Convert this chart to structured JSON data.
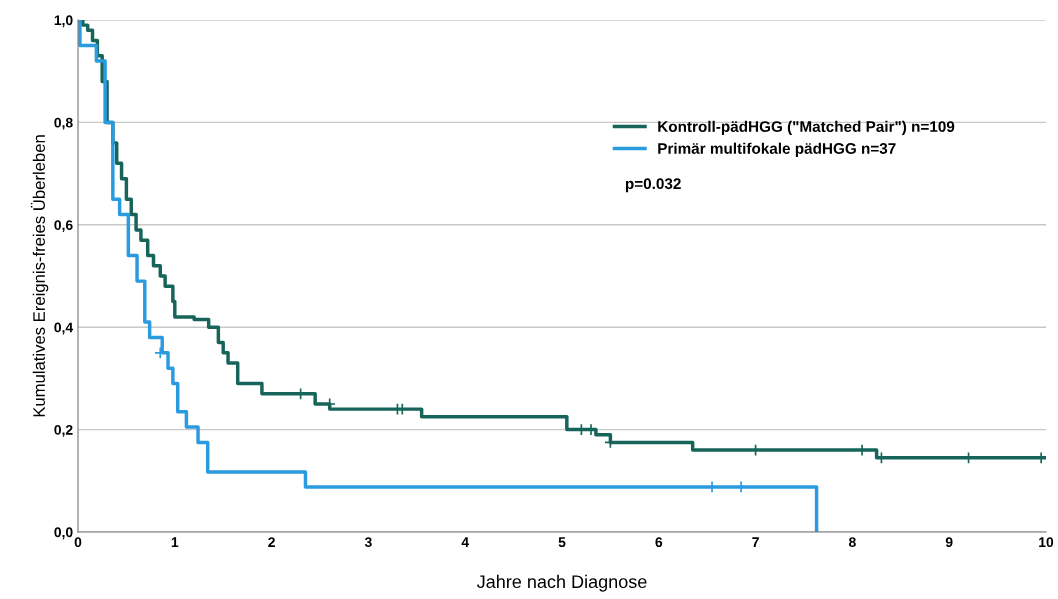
{
  "chart_data": {
    "type": "step",
    "xlabel": "Jahre nach Diagnose",
    "ylabel": "Kumulatives Ereignis-freies Überleben",
    "series": [
      {
        "name": "Kontroll-pädHGG (\"Matched Pair\") n=109",
        "color": "#17655a",
        "x": [
          0,
          0.05,
          0.1,
          0.15,
          0.2,
          0.25,
          0.3,
          0.36,
          0.4,
          0.45,
          0.5,
          0.55,
          0.6,
          0.65,
          0.72,
          0.78,
          0.85,
          0.9,
          0.98,
          1.0,
          1.2,
          1.35,
          1.45,
          1.5,
          1.55,
          1.65,
          1.9,
          2.45,
          2.6,
          3.55,
          5.05,
          5.1,
          5.35,
          5.5,
          6.35,
          8.25,
          10
        ],
        "values": [
          1.0,
          0.99,
          0.98,
          0.96,
          0.93,
          0.88,
          0.8,
          0.76,
          0.72,
          0.69,
          0.65,
          0.62,
          0.59,
          0.57,
          0.54,
          0.52,
          0.5,
          0.48,
          0.45,
          0.42,
          0.415,
          0.4,
          0.37,
          0.35,
          0.33,
          0.29,
          0.27,
          0.25,
          0.24,
          0.225,
          0.2,
          0.2,
          0.19,
          0.175,
          0.16,
          0.145,
          0.145
        ]
      },
      {
        "name": "Primär multifokale pädHGG n=37",
        "color": "#2b9be0",
        "x": [
          0,
          0.02,
          0.19,
          0.28,
          0.36,
          0.43,
          0.52,
          0.61,
          0.69,
          0.74,
          0.87,
          0.93,
          0.98,
          1.03,
          1.12,
          1.24,
          1.34,
          2.35,
          7.63
        ],
        "values": [
          1.0,
          0.95,
          0.92,
          0.8,
          0.65,
          0.62,
          0.54,
          0.49,
          0.41,
          0.38,
          0.35,
          0.32,
          0.29,
          0.235,
          0.205,
          0.175,
          0.117,
          0.088,
          0.0
        ]
      },
      {
        "type": "scatter",
        "color": "#17655a",
        "marker": "cross",
        "x": [
          2.3,
          2.6,
          3.3,
          3.35,
          5.2,
          5.3,
          5.5,
          7.0,
          8.1,
          8.3,
          9.2,
          9.95
        ],
        "values": [
          0.27,
          0.25,
          0.24,
          0.24,
          0.2,
          0.2,
          0.175,
          0.16,
          0.16,
          0.145,
          0.145,
          0.145
        ]
      },
      {
        "type": "scatter",
        "color": "#2b9be0",
        "marker": "cross",
        "x": [
          0.85,
          6.55,
          6.85
        ],
        "values": [
          0.35,
          0.088,
          0.088
        ]
      }
    ],
    "xlim": [
      0,
      10
    ],
    "xticks": [
      0,
      1,
      2,
      3,
      4,
      5,
      6,
      7,
      8,
      9,
      10
    ],
    "ylim": [
      0,
      1
    ],
    "yticks": [
      {
        "value": 0,
        "label": "0,0"
      },
      {
        "value": 0.2,
        "label": "0,2"
      },
      {
        "value": 0.4,
        "label": "0,4"
      },
      {
        "value": 0.6,
        "label": "0,6"
      },
      {
        "value": 0.8,
        "label": "0,8"
      },
      {
        "value": 1.0,
        "label": "1,0"
      }
    ],
    "grid": "y",
    "legend": "top right",
    "marker": "none",
    "annotations": [
      "p=0.032"
    ]
  }
}
